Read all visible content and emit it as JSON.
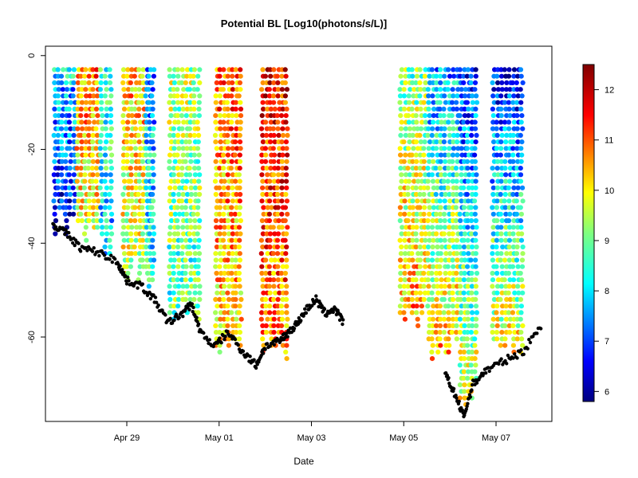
{
  "chart_data": {
    "type": "scatter",
    "title": "Potential BL [Log10(photons/s/L)]",
    "xlabel": "Date",
    "ylabel": "",
    "x_ticks": [
      "Apr 29",
      "May 01",
      "May 03",
      "May 05",
      "May 07"
    ],
    "y_ticks": [
      "0",
      "-20",
      "-40",
      "-60"
    ],
    "y_tick_values": [
      0,
      -20,
      -40,
      -60
    ],
    "ylim": [
      -78,
      2
    ],
    "colorbar": {
      "ticks": [
        "6",
        "7",
        "8",
        "9",
        "10",
        "11",
        "12"
      ],
      "tick_values": [
        6,
        7,
        8,
        9,
        10,
        11,
        12
      ],
      "range": [
        5.8,
        12.5
      ]
    },
    "profiles": [
      {
        "start_date": "Apr 27.4",
        "end_date": "Apr 27.9",
        "top_depth": -3,
        "bottom_depth": -36,
        "surface_value": 8.0,
        "deep_value": 6.5
      },
      {
        "start_date": "Apr 27.9",
        "end_date": "Apr 28.4",
        "top_depth": -3,
        "bottom_depth": -38,
        "surface_value": 10.8,
        "deep_value": 9.8
      },
      {
        "start_date": "Apr 28.4",
        "end_date": "Apr 28.7",
        "top_depth": -3,
        "bottom_depth": -40,
        "surface_value": 8.6,
        "deep_value": 8.0
      },
      {
        "start_date": "Apr 28.9",
        "end_date": "Apr 29.4",
        "top_depth": -3,
        "bottom_depth": -46,
        "surface_value": 10.6,
        "deep_value": 9.5
      },
      {
        "start_date": "Apr 29.4",
        "end_date": "Apr 29.6",
        "top_depth": -3,
        "bottom_depth": -48,
        "surface_value": 7.6,
        "deep_value": 8.5
      },
      {
        "start_date": "Apr 29.9",
        "end_date": "Apr 30.6",
        "top_depth": -3,
        "bottom_depth": -55,
        "surface_value": 9.5,
        "deep_value": 8.8
      },
      {
        "start_date": "Apr 30.9",
        "end_date": "May 01.5",
        "top_depth": -3,
        "bottom_depth": -62,
        "surface_value": 11.0,
        "deep_value": 10.2
      },
      {
        "start_date": "May 01.9",
        "end_date": "May 02.5",
        "top_depth": -3,
        "bottom_depth": -62,
        "surface_value": 11.6,
        "deep_value": 10.8
      },
      {
        "start_date": "May 04.9",
        "end_date": "May 05.5",
        "top_depth": -3,
        "bottom_depth": -55,
        "surface_value": 9.0,
        "deep_value": 10.6
      },
      {
        "start_date": "May 05.5",
        "end_date": "May 06.2",
        "top_depth": -3,
        "bottom_depth": -62,
        "surface_value": 7.6,
        "deep_value": 10.4
      },
      {
        "start_date": "May 06.2",
        "end_date": "May 06.6",
        "top_depth": -3,
        "bottom_depth": -72,
        "surface_value": 6.8,
        "deep_value": 9.8
      },
      {
        "start_date": "May 06.9",
        "end_date": "May 07.6",
        "top_depth": -3,
        "bottom_depth": -62,
        "surface_value": 6.6,
        "deep_value": 10.0
      }
    ],
    "bottom_depth_series": [
      {
        "date": "Apr 27.4",
        "depth": -36
      },
      {
        "date": "Apr 27.7",
        "depth": -38
      },
      {
        "date": "Apr 28.0",
        "depth": -41
      },
      {
        "date": "Apr 28.4",
        "depth": -42
      },
      {
        "date": "Apr 28.8",
        "depth": -44
      },
      {
        "date": "Apr 29.0",
        "depth": -48
      },
      {
        "date": "Apr 29.3",
        "depth": -49
      },
      {
        "date": "Apr 29.6",
        "depth": -52
      },
      {
        "date": "Apr 29.9",
        "depth": -57
      },
      {
        "date": "Apr 30.2",
        "depth": -55
      },
      {
        "date": "Apr 30.4",
        "depth": -53
      },
      {
        "date": "Apr 30.6",
        "depth": -59
      },
      {
        "date": "Apr 30.9",
        "depth": -62
      },
      {
        "date": "May 01.2",
        "depth": -59
      },
      {
        "date": "May 01.5",
        "depth": -63
      },
      {
        "date": "May 01.8",
        "depth": -66
      },
      {
        "date": "May 02.0",
        "depth": -62
      },
      {
        "date": "May 02.3",
        "depth": -61
      },
      {
        "date": "May 02.5",
        "depth": -59
      },
      {
        "date": "May 02.7",
        "depth": -57
      },
      {
        "date": "May 02.9",
        "depth": -54
      },
      {
        "date": "May 03.1",
        "depth": -52
      },
      {
        "date": "May 03.3",
        "depth": -55
      },
      {
        "date": "May 03.5",
        "depth": -54
      },
      {
        "date": "May 03.7",
        "depth": -57
      },
      {
        "date": "May 05.9",
        "depth": -68
      },
      {
        "date": "May 06.1",
        "depth": -72
      },
      {
        "date": "May 06.3",
        "depth": -77
      },
      {
        "date": "May 06.5",
        "depth": -70
      },
      {
        "date": "May 06.8",
        "depth": -67
      },
      {
        "date": "May 07.2",
        "depth": -65
      },
      {
        "date": "May 07.6",
        "depth": -63
      },
      {
        "date": "May 08.0",
        "depth": -57
      }
    ]
  }
}
